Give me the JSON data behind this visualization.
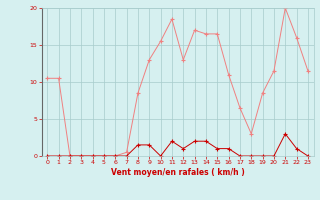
{
  "x": [
    0,
    1,
    2,
    3,
    4,
    5,
    6,
    7,
    8,
    9,
    10,
    11,
    12,
    13,
    14,
    15,
    16,
    17,
    18,
    19,
    20,
    21,
    22,
    23
  ],
  "rafales": [
    10.5,
    10.5,
    0,
    0,
    0,
    0,
    0,
    0.5,
    8.5,
    13,
    15.5,
    18.5,
    13,
    17,
    16.5,
    16.5,
    11,
    6.5,
    3,
    8.5,
    11.5,
    20,
    16,
    11.5
  ],
  "vent_moyen": [
    0,
    0,
    0,
    0,
    0,
    0,
    0,
    0,
    1.5,
    1.5,
    0,
    2,
    1,
    2,
    2,
    1,
    1,
    0,
    0,
    0,
    0,
    3,
    1,
    0
  ],
  "xlabel": "Vent moyen/en rafales ( km/h )",
  "ylim": [
    0,
    20
  ],
  "xlim": [
    -0.5,
    23.5
  ],
  "yticks": [
    0,
    5,
    10,
    15,
    20
  ],
  "xticks": [
    0,
    1,
    2,
    3,
    4,
    5,
    6,
    7,
    8,
    9,
    10,
    11,
    12,
    13,
    14,
    15,
    16,
    17,
    18,
    19,
    20,
    21,
    22,
    23
  ],
  "bg_color": "#d6f0f0",
  "grid_color": "#a8cccc",
  "line_color_rafales": "#f08080",
  "line_color_vent": "#cc0000",
  "xlabel_color": "#cc0000",
  "tick_color": "#cc0000",
  "left_spine_color": "#666666"
}
